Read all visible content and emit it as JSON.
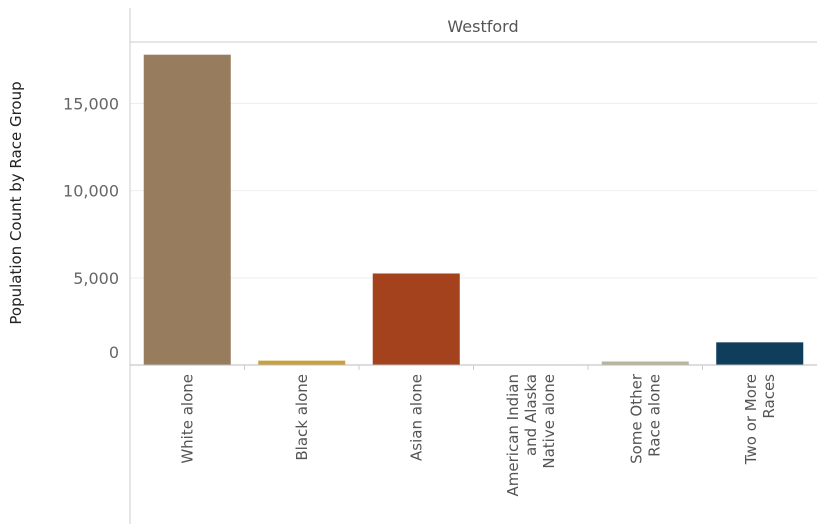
{
  "chart_data": {
    "type": "bar",
    "facet": "Westford",
    "ylabel": "Population Count by Race Group",
    "xlabel": "",
    "ylim": [
      0,
      19200
    ],
    "yticks": [
      0,
      5000,
      10000,
      15000
    ],
    "ytick_labels": [
      "0",
      "5,000",
      "10,000",
      "15,000"
    ],
    "grid": true,
    "categories": [
      [
        "White alone"
      ],
      [
        "Black alone"
      ],
      [
        "Asian alone"
      ],
      [
        "American Indian",
        "and Alaska",
        "Native alone"
      ],
      [
        "Some Other",
        "Race alone"
      ],
      [
        "Two or More",
        "Races"
      ]
    ],
    "values": [
      17800,
      250,
      5250,
      30,
      200,
      1300
    ],
    "colors": [
      "#977C5E",
      "#C9A13A",
      "#A4421E",
      "#8A8A6E",
      "#B9B49A",
      "#0F3D5C"
    ]
  }
}
